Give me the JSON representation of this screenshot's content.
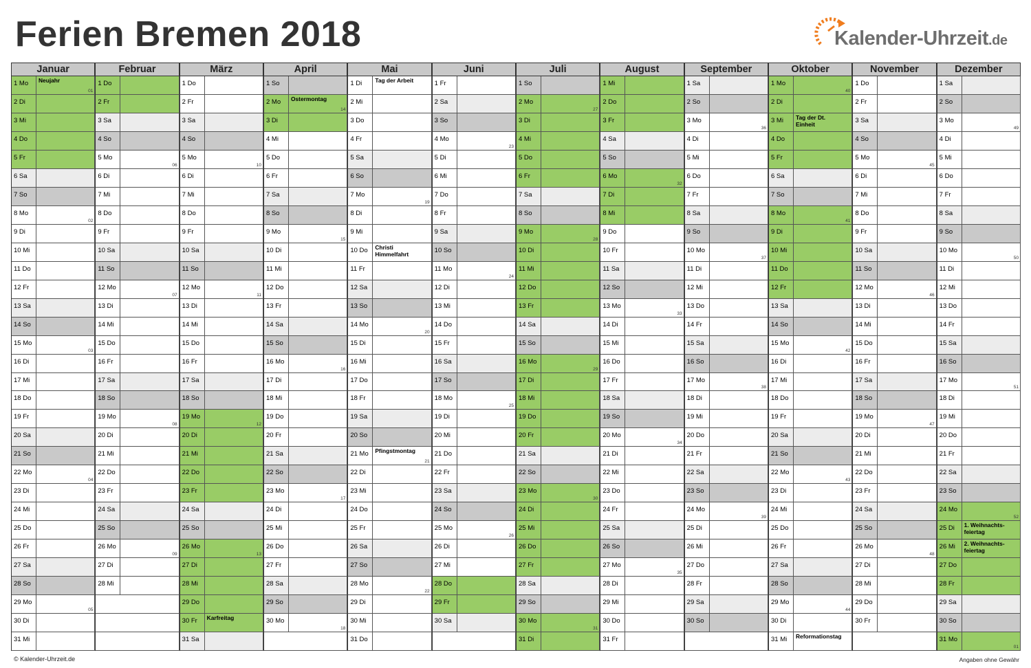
{
  "title": "Ferien Bremen 2018",
  "logo": {
    "text": "Kalender-Uhrzeit",
    "tld": ".de"
  },
  "footer": {
    "left": "© Kalender-Uhrzeit.de",
    "right": "Angaben ohne Gewähr"
  },
  "colors": {
    "ferien": "#99cc66",
    "saturday": "#ececec",
    "sunday": "#c9c9c9",
    "header": "#c8c8c8",
    "logo_orange": "#f07d1e"
  },
  "year": 2018,
  "weekday_abbr": [
    "So",
    "Mo",
    "Di",
    "Mi",
    "Do",
    "Fr",
    "Sa"
  ],
  "months": [
    {
      "name": "Januar",
      "days": 31,
      "ferien_days": [
        1,
        2,
        3,
        4,
        5
      ],
      "notes": {
        "1": "Neujahr"
      },
      "weeks": {
        "1": "01",
        "8": "02",
        "15": "03",
        "22": "04",
        "29": "05"
      }
    },
    {
      "name": "Februar",
      "days": 28,
      "ferien_days": [
        1,
        2
      ],
      "notes": {},
      "weeks": {
        "5": "06",
        "12": "07",
        "19": "08",
        "26": "09"
      }
    },
    {
      "name": "März",
      "days": 31,
      "ferien_days": [
        19,
        20,
        21,
        22,
        23,
        26,
        27,
        28,
        29,
        30
      ],
      "notes": {
        "30": "Karfreitag"
      },
      "weeks": {
        "5": "10",
        "12": "11",
        "19": "12",
        "26": "13"
      }
    },
    {
      "name": "April",
      "days": 30,
      "ferien_days": [
        2,
        3
      ],
      "notes": {
        "2": "Ostermontag"
      },
      "weeks": {
        "2": "14",
        "9": "15",
        "16": "16",
        "23": "17",
        "30": "18"
      }
    },
    {
      "name": "Mai",
      "days": 31,
      "ferien_days": [],
      "notes": {
        "1": "Tag der Arbeit",
        "10": "Christi\nHimmelfahrt",
        "21": "Pfingstmontag"
      },
      "weeks": {
        "7": "19",
        "14": "20",
        "21": "21",
        "28": "22"
      }
    },
    {
      "name": "Juni",
      "days": 30,
      "ferien_days": [
        28,
        29
      ],
      "notes": {},
      "weeks": {
        "4": "23",
        "11": "24",
        "18": "25",
        "25": "26"
      }
    },
    {
      "name": "Juli",
      "days": 31,
      "ferien_days": [
        2,
        3,
        4,
        5,
        6,
        9,
        10,
        11,
        12,
        13,
        16,
        17,
        18,
        19,
        20,
        23,
        24,
        25,
        26,
        27,
        30,
        31
      ],
      "notes": {},
      "weeks": {
        "2": "27",
        "9": "28",
        "16": "29",
        "23": "30",
        "30": "31"
      }
    },
    {
      "name": "August",
      "days": 31,
      "ferien_days": [
        1,
        2,
        3,
        6,
        7,
        8
      ],
      "notes": {},
      "weeks": {
        "6": "32",
        "13": "33",
        "20": "34",
        "27": "35"
      }
    },
    {
      "name": "September",
      "days": 30,
      "ferien_days": [],
      "notes": {},
      "weeks": {
        "3": "36",
        "10": "37",
        "17": "38",
        "24": "39"
      }
    },
    {
      "name": "Oktober",
      "days": 31,
      "ferien_days": [
        1,
        2,
        3,
        4,
        5,
        8,
        9,
        10,
        11,
        12
      ],
      "notes": {
        "3": "Tag der Dt.\nEinheit",
        "31": "Reformationstag"
      },
      "weeks": {
        "1": "40",
        "8": "41",
        "15": "42",
        "22": "43",
        "29": "44"
      }
    },
    {
      "name": "November",
      "days": 30,
      "ferien_days": [],
      "notes": {},
      "weeks": {
        "5": "45",
        "12": "46",
        "19": "47",
        "26": "48"
      }
    },
    {
      "name": "Dezember",
      "days": 31,
      "ferien_days": [
        24,
        25,
        26,
        27,
        28,
        31
      ],
      "notes": {
        "25": "1. Weihnachts-\nfeiertag",
        "26": "2. Weihnachts-\nfeiertag"
      },
      "weeks": {
        "3": "49",
        "10": "50",
        "17": "51",
        "24": "52",
        "31": "01"
      }
    }
  ]
}
